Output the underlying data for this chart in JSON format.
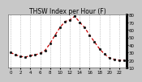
{
  "hours": [
    0,
    1,
    2,
    3,
    4,
    5,
    6,
    7,
    8,
    9,
    10,
    11,
    12,
    13,
    14,
    15,
    16,
    17,
    18,
    19,
    20,
    21,
    22,
    23
  ],
  "values": [
    30,
    27,
    25,
    24,
    26,
    27,
    29,
    33,
    42,
    53,
    63,
    71,
    73,
    78,
    70,
    63,
    53,
    44,
    35,
    28,
    23,
    21,
    20,
    20
  ],
  "line_color": "#cc0000",
  "marker_color": "#111111",
  "bg_color": "#c8c8c8",
  "plot_bg": "#ffffff",
  "grid_color": "#999999",
  "ylim": [
    10,
    80
  ],
  "yticks": [
    10,
    20,
    30,
    40,
    50,
    60,
    70,
    80
  ],
  "ytick_labels": [
    "10",
    "20",
    "30",
    "40",
    "50",
    "60",
    "70",
    "80"
  ],
  "xlim": [
    -0.5,
    23.5
  ],
  "xticks": [
    0,
    2,
    4,
    6,
    8,
    10,
    12,
    14,
    16,
    18,
    20,
    22
  ],
  "xtick_labels": [
    "0",
    "2",
    "4",
    "6",
    "8",
    "10",
    "12",
    "14",
    "16",
    "18",
    "20",
    "22"
  ],
  "title": "THSW Index per Hour (F)",
  "title_fontsize": 5.5,
  "tick_fontsize": 4.0,
  "line_width": 0.9,
  "marker_size": 2.0,
  "grid_linewidth": 0.5
}
